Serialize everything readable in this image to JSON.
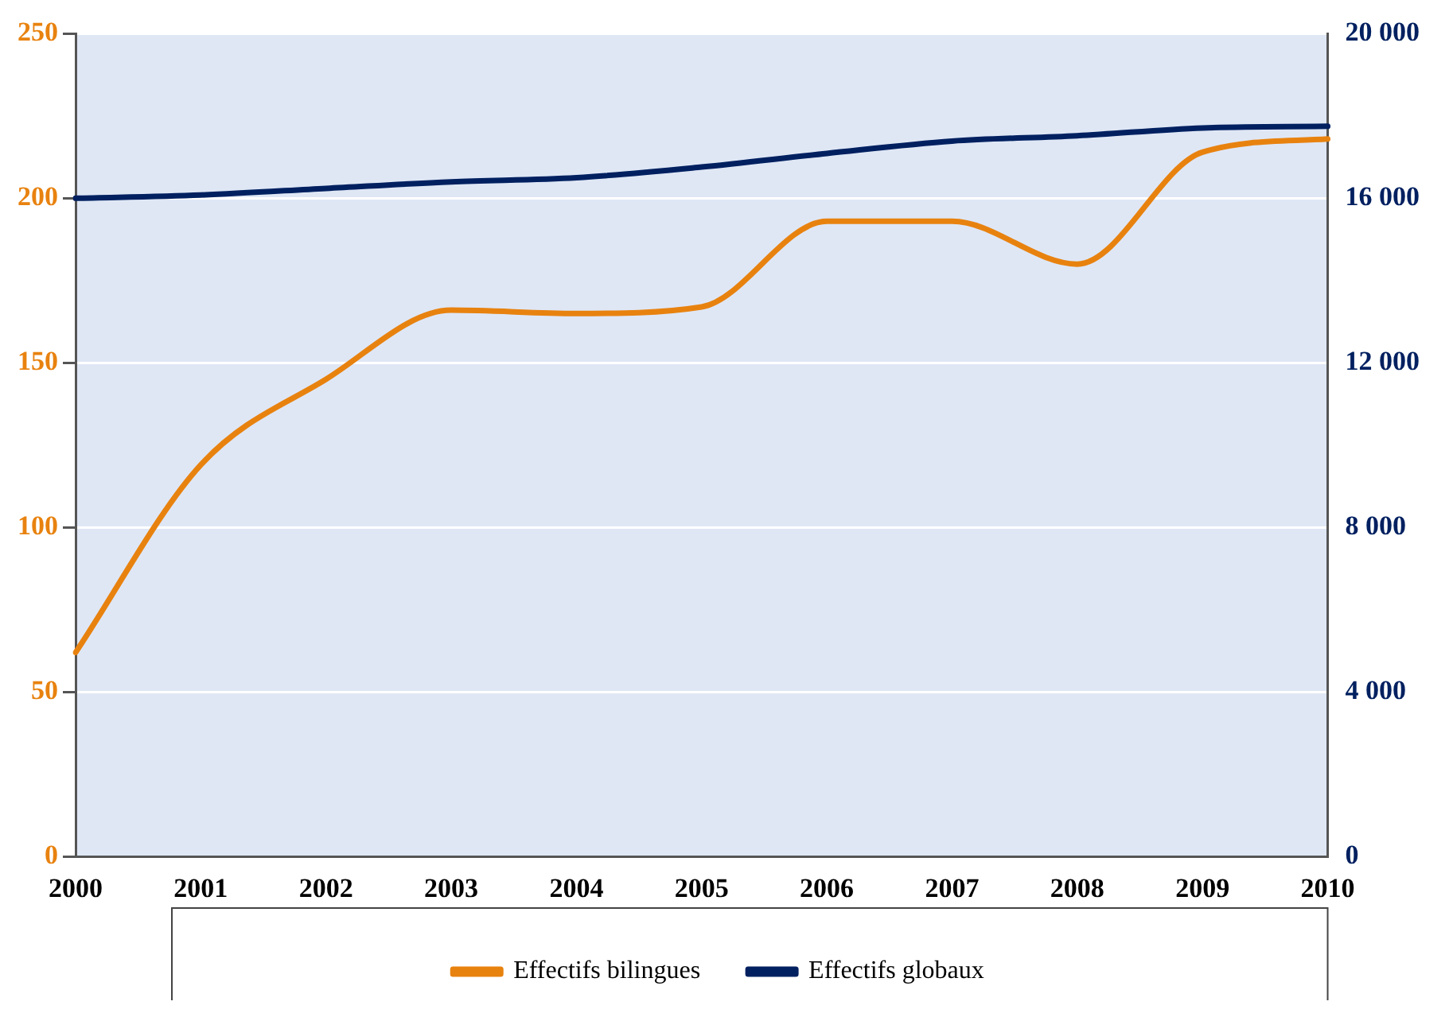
{
  "chart_data": {
    "type": "line",
    "categories": [
      "2000",
      "2001",
      "2002",
      "2003",
      "2004",
      "2005",
      "2006",
      "2007",
      "2008",
      "2009",
      "2010"
    ],
    "series": [
      {
        "name": "Effectifs bilingues",
        "color": "#e8820f",
        "values": [
          62,
          119,
          145,
          166,
          165,
          167,
          193,
          193,
          180,
          214,
          218
        ]
      },
      {
        "name": "Effectifs globaux",
        "color": "#002060",
        "axis": "y2",
        "values": [
          16000,
          16080,
          16240,
          16400,
          16500,
          16760,
          17090,
          17390,
          17520,
          17710,
          17750
        ]
      }
    ],
    "ylim": [
      0,
      250
    ],
    "yticks": [
      0,
      50,
      100,
      150,
      200,
      250
    ],
    "y2lim": [
      0,
      20000
    ],
    "y2ticks": [
      {
        "value": 0,
        "label": "0"
      },
      {
        "value": 4000,
        "label": "4 000"
      },
      {
        "value": 8000,
        "label": "8 000"
      },
      {
        "value": 12000,
        "label": "12 000"
      },
      {
        "value": 16000,
        "label": "16 000"
      },
      {
        "value": 20000,
        "label": "20 000"
      }
    ],
    "grid": "y",
    "legend": "bottom",
    "marker": "none",
    "line_style": "solid"
  }
}
